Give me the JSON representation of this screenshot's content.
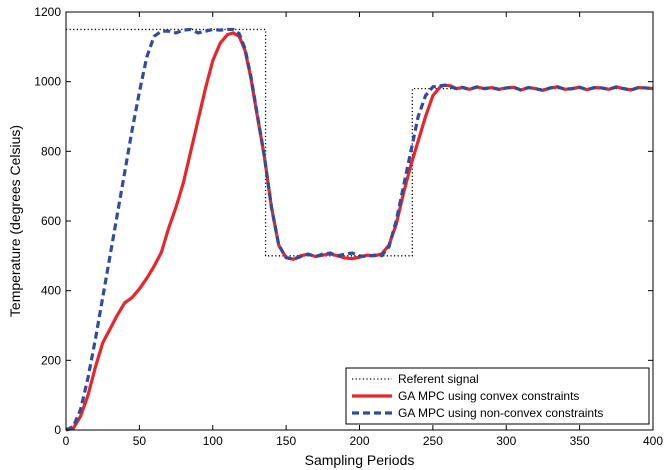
{
  "chart_data": {
    "type": "line",
    "xlabel": "Sampling Periods",
    "ylabel": "Temperature (degrees Celsius)",
    "xlim": [
      0,
      400
    ],
    "ylim": [
      0,
      1200
    ],
    "xticks": [
      0,
      50,
      100,
      150,
      200,
      250,
      300,
      350,
      400
    ],
    "yticks": [
      0,
      200,
      400,
      600,
      800,
      1000,
      1200
    ],
    "grid": false,
    "legend_position": "bottom-right",
    "series": [
      {
        "name": "Referent signal",
        "color": "#000000",
        "style": "dotted",
        "x": [
          0,
          136,
          136,
          236,
          236,
          400
        ],
        "y": [
          1150,
          1150,
          500,
          500,
          980,
          980
        ]
      },
      {
        "name": "GA MPC using convex constraints",
        "color": "#e8252a",
        "style": "solid",
        "x": [
          0,
          5,
          10,
          15,
          20,
          25,
          30,
          35,
          40,
          45,
          50,
          55,
          60,
          65,
          70,
          75,
          80,
          85,
          90,
          95,
          100,
          105,
          110,
          114,
          118,
          122,
          126,
          130,
          135,
          140,
          145,
          150,
          155,
          160,
          165,
          170,
          175,
          180,
          185,
          190,
          195,
          200,
          205,
          210,
          215,
          220,
          225,
          230,
          235,
          240,
          245,
          250,
          255,
          258,
          262,
          266,
          270,
          275,
          280,
          285,
          290,
          295,
          300,
          305,
          310,
          315,
          320,
          325,
          330,
          335,
          340,
          345,
          350,
          355,
          360,
          365,
          370,
          375,
          380,
          385,
          390,
          395,
          400
        ],
        "y": [
          0,
          5,
          40,
          100,
          180,
          250,
          290,
          330,
          365,
          380,
          405,
          435,
          470,
          510,
          580,
          640,
          710,
          800,
          890,
          980,
          1060,
          1110,
          1135,
          1140,
          1130,
          1090,
          1010,
          910,
          790,
          640,
          530,
          495,
          490,
          500,
          505,
          498,
          502,
          506,
          500,
          494,
          492,
          496,
          502,
          500,
          505,
          530,
          590,
          680,
          760,
          830,
          900,
          960,
          985,
          990,
          988,
          980,
          983,
          978,
          985,
          980,
          983,
          978,
          982,
          984,
          976,
          983,
          980,
          975,
          982,
          985,
          978,
          980,
          984,
          977,
          983,
          982,
          978,
          985,
          980,
          976,
          983,
          982,
          980
        ]
      },
      {
        "name": "GA MPC using non-convex constraints",
        "color": "#2f4d9e",
        "style": "dashed",
        "x": [
          0,
          5,
          10,
          15,
          20,
          25,
          30,
          35,
          40,
          45,
          50,
          55,
          60,
          65,
          70,
          75,
          80,
          85,
          90,
          95,
          100,
          105,
          110,
          114,
          118,
          122,
          126,
          130,
          135,
          140,
          145,
          150,
          155,
          160,
          165,
          170,
          175,
          180,
          185,
          190,
          195,
          200,
          205,
          210,
          215,
          220,
          225,
          230,
          235,
          240,
          245,
          250,
          255,
          258,
          262,
          266,
          270,
          275,
          280,
          285,
          290,
          295,
          300,
          305,
          310,
          315,
          320,
          325,
          330,
          335,
          340,
          345,
          350,
          355,
          360,
          365,
          370,
          375,
          380,
          385,
          390,
          395,
          400
        ],
        "y": [
          0,
          10,
          60,
          150,
          260,
          380,
          500,
          620,
          740,
          860,
          970,
          1070,
          1130,
          1145,
          1145,
          1140,
          1148,
          1150,
          1140,
          1145,
          1150,
          1148,
          1150,
          1150,
          1138,
          1095,
          1015,
          915,
          790,
          640,
          530,
          495,
          490,
          498,
          505,
          498,
          505,
          508,
          500,
          505,
          508,
          500,
          498,
          502,
          500,
          525,
          600,
          700,
          800,
          900,
          960,
          985,
          988,
          990,
          985,
          980,
          984,
          978,
          985,
          980,
          983,
          978,
          982,
          984,
          976,
          983,
          980,
          975,
          982,
          985,
          978,
          980,
          984,
          977,
          983,
          982,
          978,
          985,
          980,
          976,
          983,
          982,
          980
        ]
      }
    ]
  }
}
